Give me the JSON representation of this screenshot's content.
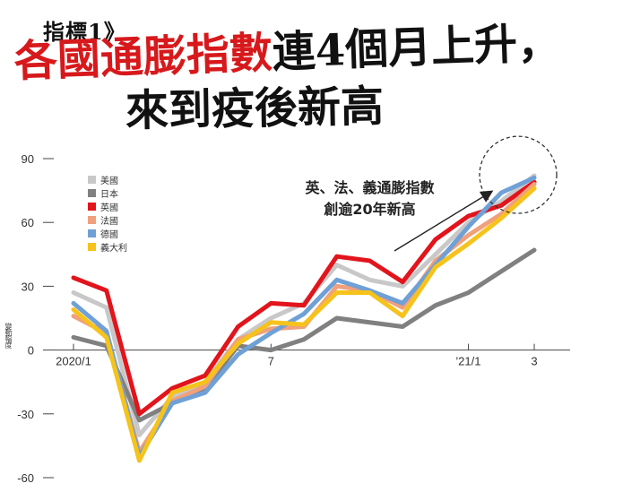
{
  "headline": {
    "kicker": "指標1》",
    "title_red": "各國通膨指數",
    "title_black": "連4個月上升，",
    "title_line2": "來到疫後新高"
  },
  "annotation": {
    "line1": "英、法、義通膨指數",
    "line2": "創逾20年新高"
  },
  "chart_data": {
    "type": "line",
    "title": "",
    "ylabel": "變動幅度",
    "xlabel": "",
    "ylim": [
      -60,
      90
    ],
    "yticks": [
      90,
      60,
      30,
      0,
      -30,
      -60
    ],
    "x": [
      0,
      1,
      2,
      3,
      4,
      5,
      6,
      7,
      8,
      9,
      10,
      11,
      12,
      13,
      14
    ],
    "xtick_labels": [
      {
        "x": 0,
        "label": "2020/1"
      },
      {
        "x": 6,
        "label": "7"
      },
      {
        "x": 12,
        "label": "'21/1"
      },
      {
        "x": 14,
        "label": "3"
      }
    ],
    "series": [
      {
        "name": "美國",
        "color": "#c8c8c8",
        "values": [
          27,
          20,
          -40,
          -22,
          -15,
          5,
          15,
          22,
          40,
          33,
          30,
          45,
          60,
          70,
          82
        ]
      },
      {
        "name": "日本",
        "color": "#808080",
        "values": [
          6,
          2,
          -33,
          -25,
          -18,
          2,
          0,
          5,
          15,
          13,
          11,
          21,
          27,
          37,
          47
        ]
      },
      {
        "name": "英國",
        "color": "#e2141c",
        "values": [
          34,
          28,
          -30,
          -18,
          -12,
          11,
          22,
          21,
          44,
          42,
          32,
          52,
          63,
          68,
          79
        ]
      },
      {
        "name": "法國",
        "color": "#f0a07c",
        "values": [
          16,
          8,
          -48,
          -24,
          -17,
          5,
          10,
          11,
          30,
          28,
          20,
          42,
          54,
          64,
          78
        ]
      },
      {
        "name": "德國",
        "color": "#6fa0d6",
        "values": [
          22,
          9,
          -50,
          -25,
          -20,
          -2,
          8,
          17,
          33,
          28,
          22,
          40,
          58,
          74,
          81
        ]
      },
      {
        "name": "義大利",
        "color": "#f5c31b",
        "values": [
          19,
          6,
          -52,
          -20,
          -15,
          3,
          13,
          12,
          27,
          27,
          16,
          39,
          50,
          62,
          76
        ]
      }
    ]
  }
}
